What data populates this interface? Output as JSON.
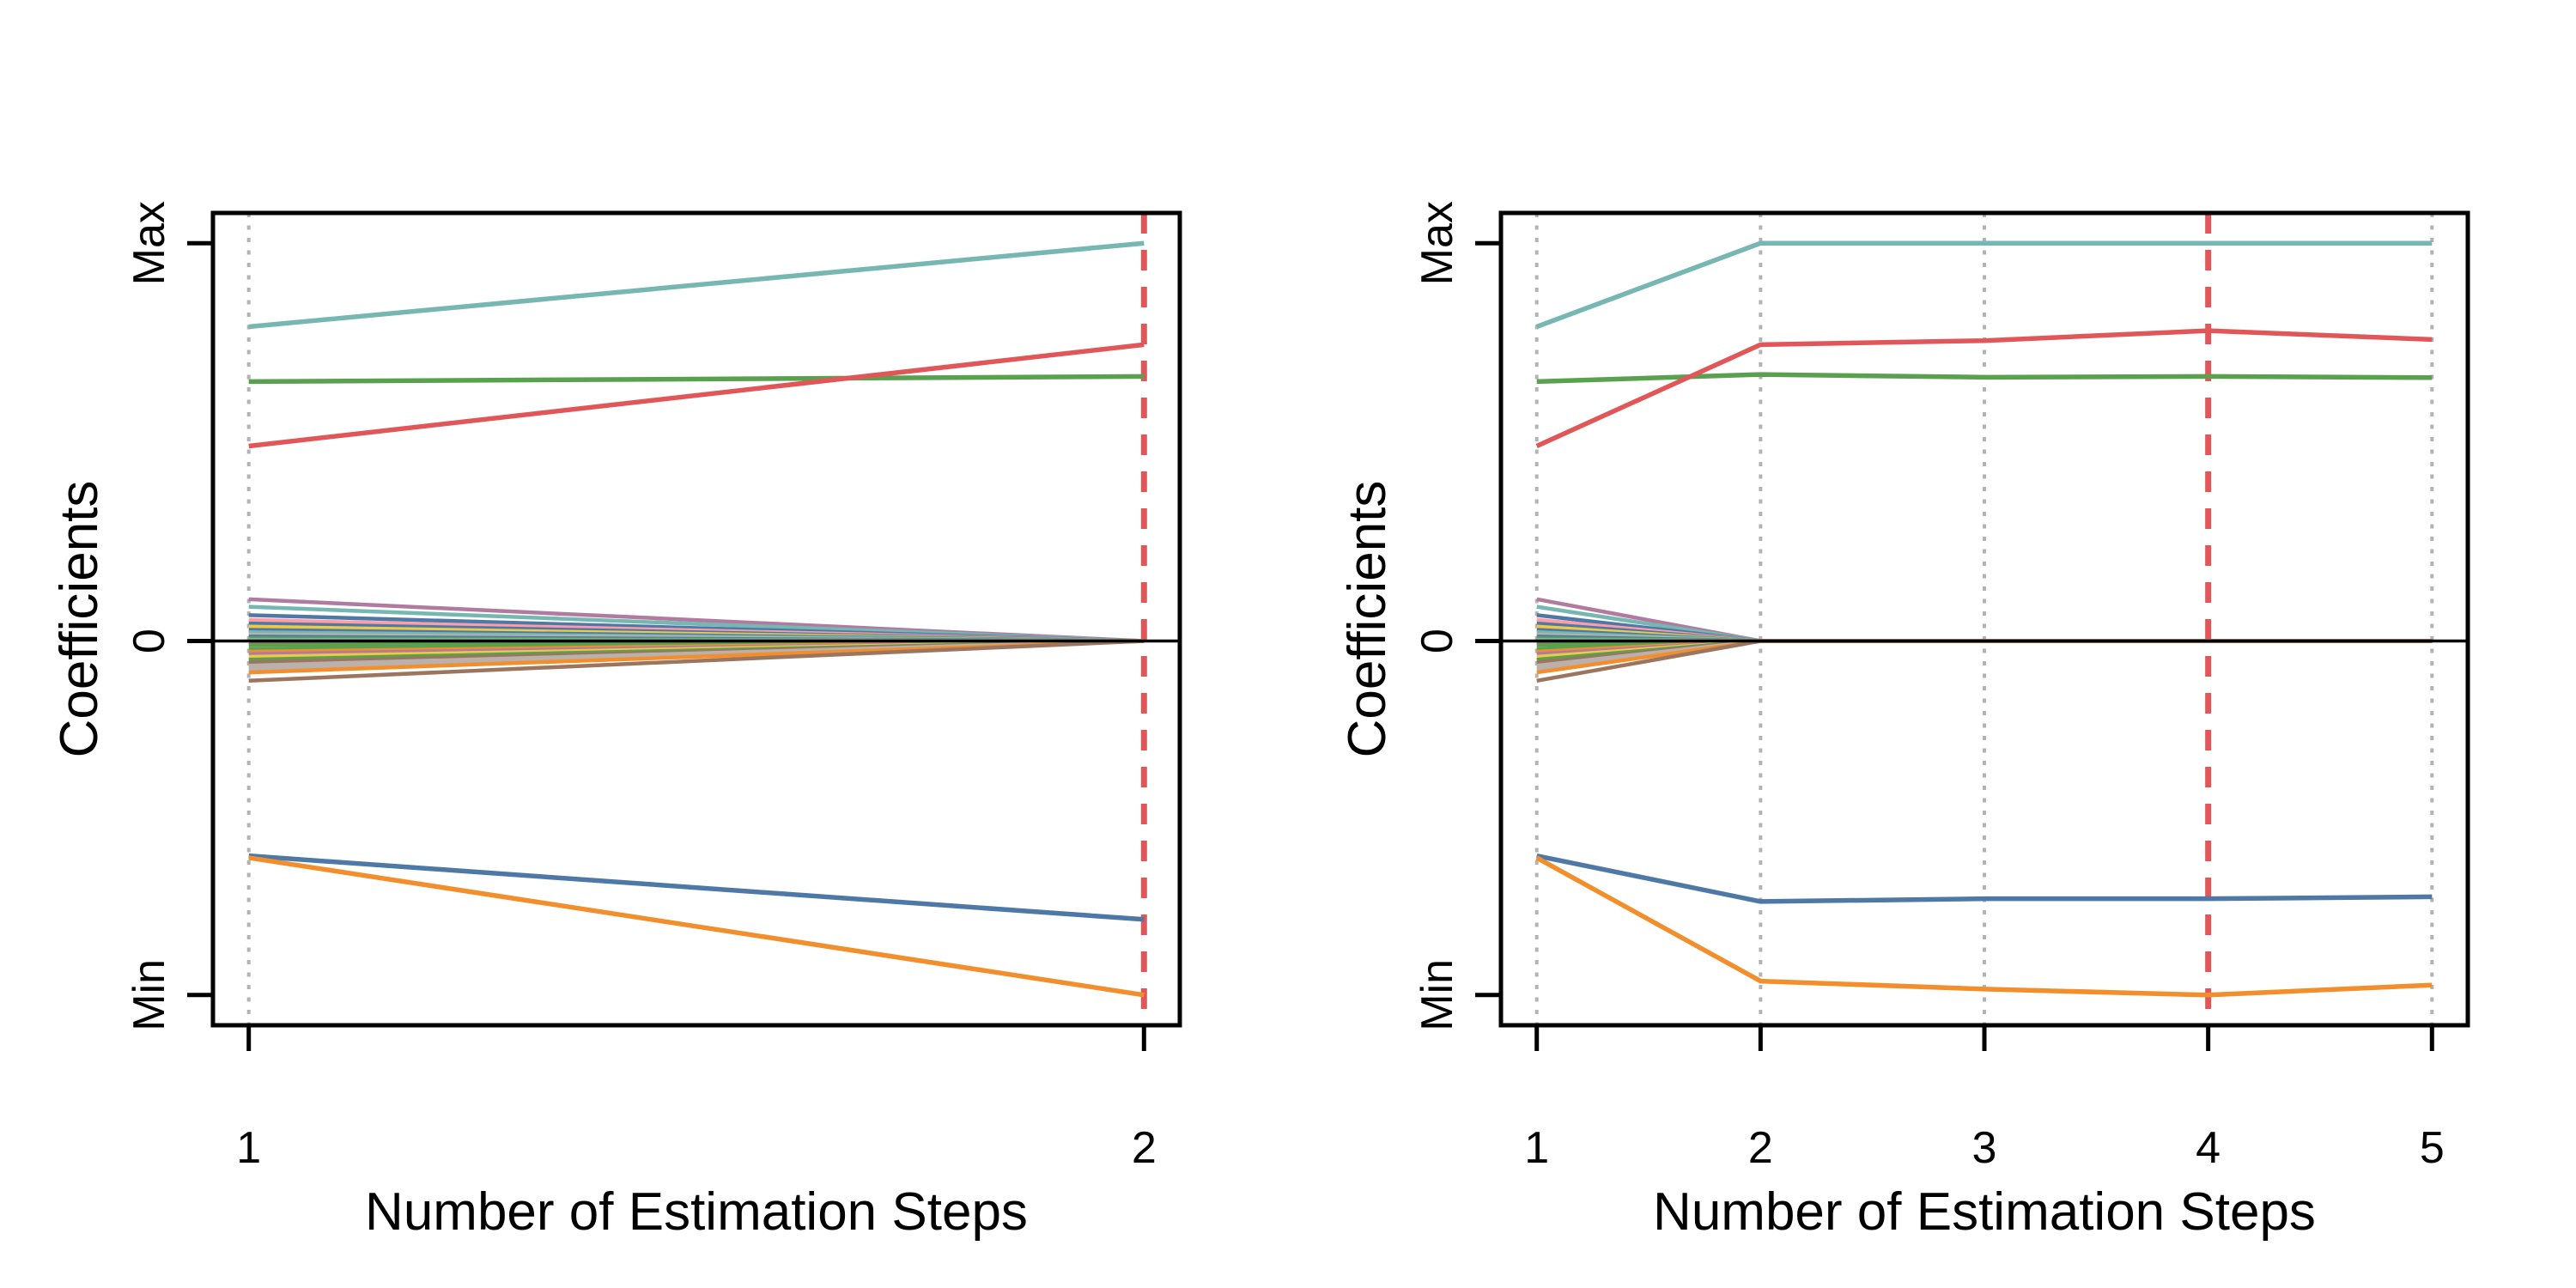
{
  "figure": {
    "background": "#ffffff",
    "description": "Two coefficient path plots versus number of estimation steps"
  },
  "style": {
    "grid_color": "#b3b3b3",
    "axis_color": "#000000",
    "zero_line_color": "#000000",
    "highlight_color": "#e15759",
    "palette": {
      "blue": "#4e79a7",
      "orange": "#f28e2b",
      "red": "#e15759",
      "teal": "#76b7b2",
      "green": "#59a14f",
      "yellow": "#edc948",
      "purple": "#b07aa1",
      "pink": "#ff9da7",
      "brown": "#9c755f",
      "gray": "#bab0ac"
    }
  },
  "chart_data": [
    {
      "type": "line",
      "title": "",
      "xlabel": "Number of Estimation Steps",
      "ylabel": "Coefficients",
      "x": [
        1,
        2
      ],
      "x_tick_labels": [
        "1",
        "2"
      ],
      "y_ticks": [
        {
          "label": "Max",
          "value": 1.0
        },
        {
          "label": "0",
          "value": 0.0
        },
        {
          "label": "Min",
          "value": -0.89
        }
      ],
      "ylim": [
        -0.966,
        1.076
      ],
      "grid": "vertical dotted line at every step",
      "legend": "none",
      "highlight_step": 2,
      "zero_line": true,
      "series": [
        {
          "name": "coef-max-path",
          "color": "#76b7b2",
          "values": [
            0.79,
            1.0
          ]
        },
        {
          "name": "coef-green-path",
          "color": "#59a14f",
          "values": [
            0.652,
            0.665
          ]
        },
        {
          "name": "coef-red-path",
          "color": "#e15759",
          "values": [
            0.49,
            0.745
          ]
        },
        {
          "name": "coef-blue-path",
          "color": "#4e79a7",
          "values": [
            -0.54,
            -0.7
          ]
        },
        {
          "name": "coef-min-path",
          "color": "#f28e2b",
          "values": [
            -0.545,
            -0.89
          ]
        }
      ],
      "shrunk_series_note": "small coefficients that shrink to exactly 0 at step 2",
      "shrunk_series": [
        {
          "color": "#b07aa1",
          "start": 0.105
        },
        {
          "color": "#76b7b2",
          "start": 0.086
        },
        {
          "color": "#4e79a7",
          "start": 0.065
        },
        {
          "color": "#ff9da7",
          "start": 0.053
        },
        {
          "color": "#4e79a7",
          "start": 0.044
        },
        {
          "color": "#edc948",
          "start": 0.036
        },
        {
          "color": "#4e79a7",
          "start": 0.028
        },
        {
          "color": "#76b7b2",
          "start": 0.022
        },
        {
          "color": "#bab0ac",
          "start": 0.016
        },
        {
          "color": "#4e79a7",
          "start": 0.011
        },
        {
          "color": "#59a14f",
          "start": 0.007
        },
        {
          "color": "#76b7b2",
          "start": 0.003
        },
        {
          "color": "#e15759",
          "start": -0.004
        },
        {
          "color": "#59a14f",
          "start": -0.01
        },
        {
          "color": "#59a14f",
          "start": -0.02
        },
        {
          "color": "#f28e2b",
          "start": -0.027
        },
        {
          "color": "#b07aa1",
          "start": -0.033
        },
        {
          "color": "#edc948",
          "start": -0.04
        },
        {
          "color": "#59a14f",
          "start": -0.047
        },
        {
          "color": "#9c755f",
          "start": -0.054
        },
        {
          "color": "#bab0ac",
          "start": -0.062
        },
        {
          "color": "#bab0ac",
          "start": -0.07
        },
        {
          "color": "#f28e2b",
          "start": -0.079
        },
        {
          "color": "#9c755f",
          "start": -0.1
        }
      ]
    },
    {
      "type": "line",
      "title": "",
      "xlabel": "Number of Estimation Steps",
      "ylabel": "Coefficients",
      "x": [
        1,
        2,
        3,
        4,
        5
      ],
      "x_tick_labels": [
        "1",
        "2",
        "3",
        "4",
        "5"
      ],
      "y_ticks": [
        {
          "label": "Max",
          "value": 1.0
        },
        {
          "label": "0",
          "value": 0.0
        },
        {
          "label": "Min",
          "value": -0.89
        }
      ],
      "ylim": [
        -0.966,
        1.076
      ],
      "grid": "vertical dotted line at every step",
      "legend": "none",
      "highlight_step": 4,
      "zero_line": true,
      "series": [
        {
          "name": "coef-max-path",
          "color": "#76b7b2",
          "values": [
            0.79,
            1.0,
            1.0,
            1.0,
            1.0
          ]
        },
        {
          "name": "coef-green-path",
          "color": "#59a14f",
          "values": [
            0.652,
            0.67,
            0.663,
            0.665,
            0.662
          ]
        },
        {
          "name": "coef-red-path",
          "color": "#e15759",
          "values": [
            0.49,
            0.745,
            0.755,
            0.78,
            0.758
          ]
        },
        {
          "name": "coef-blue-path",
          "color": "#4e79a7",
          "values": [
            -0.54,
            -0.655,
            -0.648,
            -0.648,
            -0.643
          ]
        },
        {
          "name": "coef-min-path",
          "color": "#f28e2b",
          "values": [
            -0.545,
            -0.855,
            -0.875,
            -0.89,
            -0.865
          ]
        }
      ],
      "shrunk_series_note": "small coefficients that shrink to exactly 0 at step 2 and stay 0",
      "shrunk_series": [
        {
          "color": "#b07aa1",
          "start": 0.105
        },
        {
          "color": "#76b7b2",
          "start": 0.086
        },
        {
          "color": "#4e79a7",
          "start": 0.065
        },
        {
          "color": "#ff9da7",
          "start": 0.053
        },
        {
          "color": "#4e79a7",
          "start": 0.044
        },
        {
          "color": "#edc948",
          "start": 0.036
        },
        {
          "color": "#4e79a7",
          "start": 0.028
        },
        {
          "color": "#76b7b2",
          "start": 0.022
        },
        {
          "color": "#bab0ac",
          "start": 0.016
        },
        {
          "color": "#4e79a7",
          "start": 0.011
        },
        {
          "color": "#59a14f",
          "start": 0.007
        },
        {
          "color": "#76b7b2",
          "start": 0.003
        },
        {
          "color": "#e15759",
          "start": -0.004
        },
        {
          "color": "#59a14f",
          "start": -0.01
        },
        {
          "color": "#59a14f",
          "start": -0.02
        },
        {
          "color": "#f28e2b",
          "start": -0.027
        },
        {
          "color": "#b07aa1",
          "start": -0.033
        },
        {
          "color": "#edc948",
          "start": -0.04
        },
        {
          "color": "#59a14f",
          "start": -0.047
        },
        {
          "color": "#9c755f",
          "start": -0.054
        },
        {
          "color": "#bab0ac",
          "start": -0.062
        },
        {
          "color": "#bab0ac",
          "start": -0.07
        },
        {
          "color": "#f28e2b",
          "start": -0.079
        },
        {
          "color": "#9c755f",
          "start": -0.1
        }
      ]
    }
  ]
}
